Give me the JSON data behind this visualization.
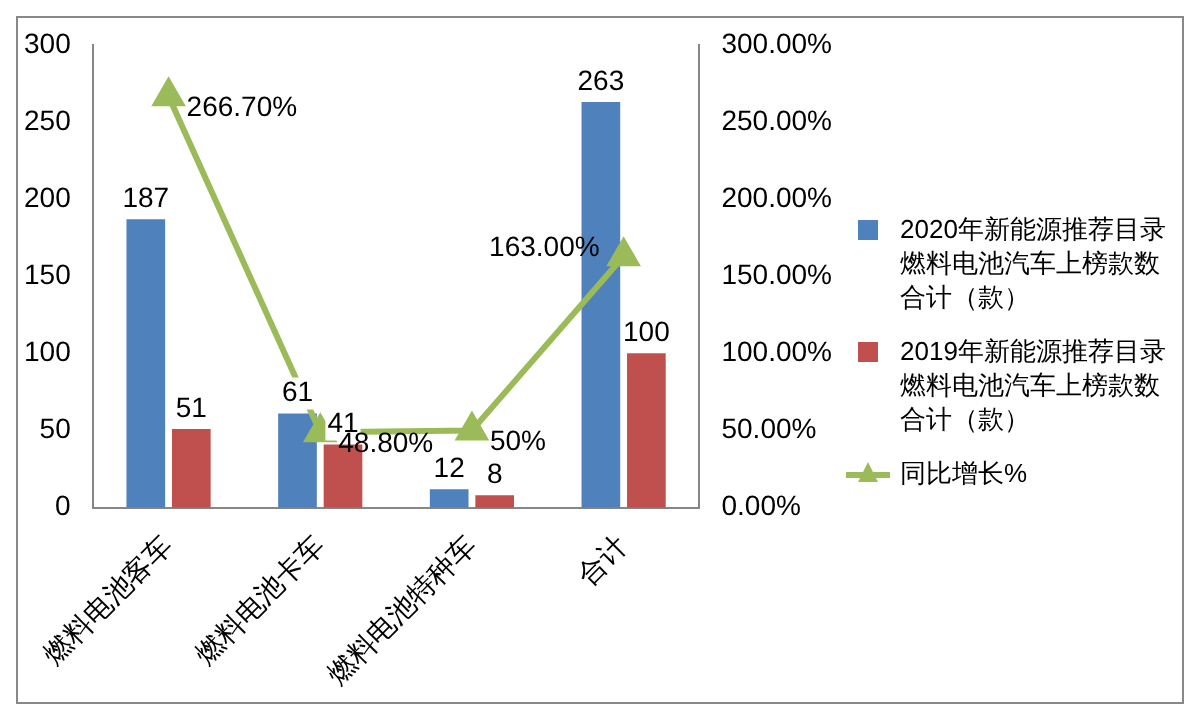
{
  "chart_data": {
    "type": "bar",
    "categories": [
      "燃料电池客车",
      "燃料电池卡车",
      "燃料电池特种车",
      "合计"
    ],
    "series": [
      {
        "name": "2020年新能源推荐目录燃料电池汽车上榜款数合计（款）",
        "color": "#4f81bd",
        "values": [
          187,
          61,
          12,
          263
        ],
        "value_labels": [
          "187",
          "61",
          "12",
          "263"
        ]
      },
      {
        "name": "2019年新能源推荐目录燃料电池汽车上榜款数合计（款）",
        "color": "#c0504d",
        "values": [
          51,
          41,
          8,
          100
        ],
        "value_labels": [
          "51",
          "41",
          "8",
          "100"
        ]
      },
      {
        "name": "同比增长%",
        "type": "line",
        "axis": "y2",
        "color": "#9bbb59",
        "marker": "triangle",
        "values": [
          266.7,
          48.8,
          50,
          163
        ],
        "value_labels": [
          "266.70%",
          "48.80%",
          "50%",
          "163.00%"
        ]
      }
    ],
    "ylim": [
      0,
      300
    ],
    "yticks": [
      0,
      50,
      100,
      150,
      200,
      250,
      300
    ],
    "y2lim": [
      0,
      300
    ],
    "y2ticks": [
      {
        "value": 0,
        "label": "0.00%"
      },
      {
        "value": 50,
        "label": "50.00%"
      },
      {
        "value": 100,
        "label": "100.00%"
      },
      {
        "value": 150,
        "label": "150.00%"
      },
      {
        "value": 200,
        "label": "200.00%"
      },
      {
        "value": 250,
        "label": "250.00%"
      },
      {
        "value": 300,
        "label": "300.00%"
      }
    ],
    "legend": "right",
    "grid": false
  }
}
